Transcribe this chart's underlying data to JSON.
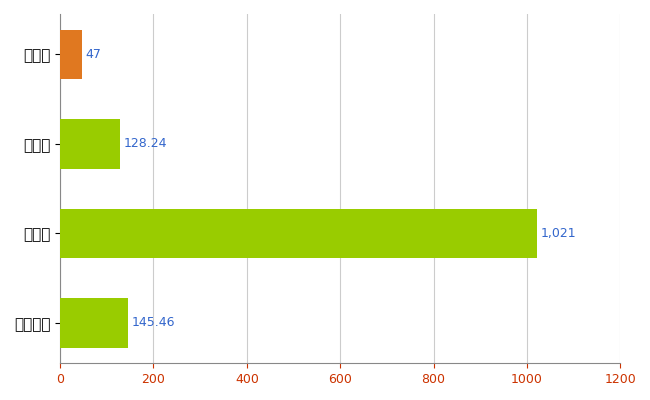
{
  "categories": [
    "全国平均",
    "県最大",
    "県平均",
    "綾川町"
  ],
  "values": [
    145.46,
    1021,
    128.24,
    47
  ],
  "bar_colors": [
    "#99cc00",
    "#99cc00",
    "#99cc00",
    "#e07820"
  ],
  "value_labels": [
    "145.46",
    "1,021",
    "128.24",
    "47"
  ],
  "xlim": [
    0,
    1200
  ],
  "xticks": [
    0,
    200,
    400,
    600,
    800,
    1000,
    1200
  ],
  "tick_color": "#cc3300",
  "label_color": "#3366cc",
  "bar_height": 0.55,
  "grid_color": "#cccccc",
  "bg_color": "#ffffff",
  "font_size_labels": 11,
  "font_size_values": 9
}
